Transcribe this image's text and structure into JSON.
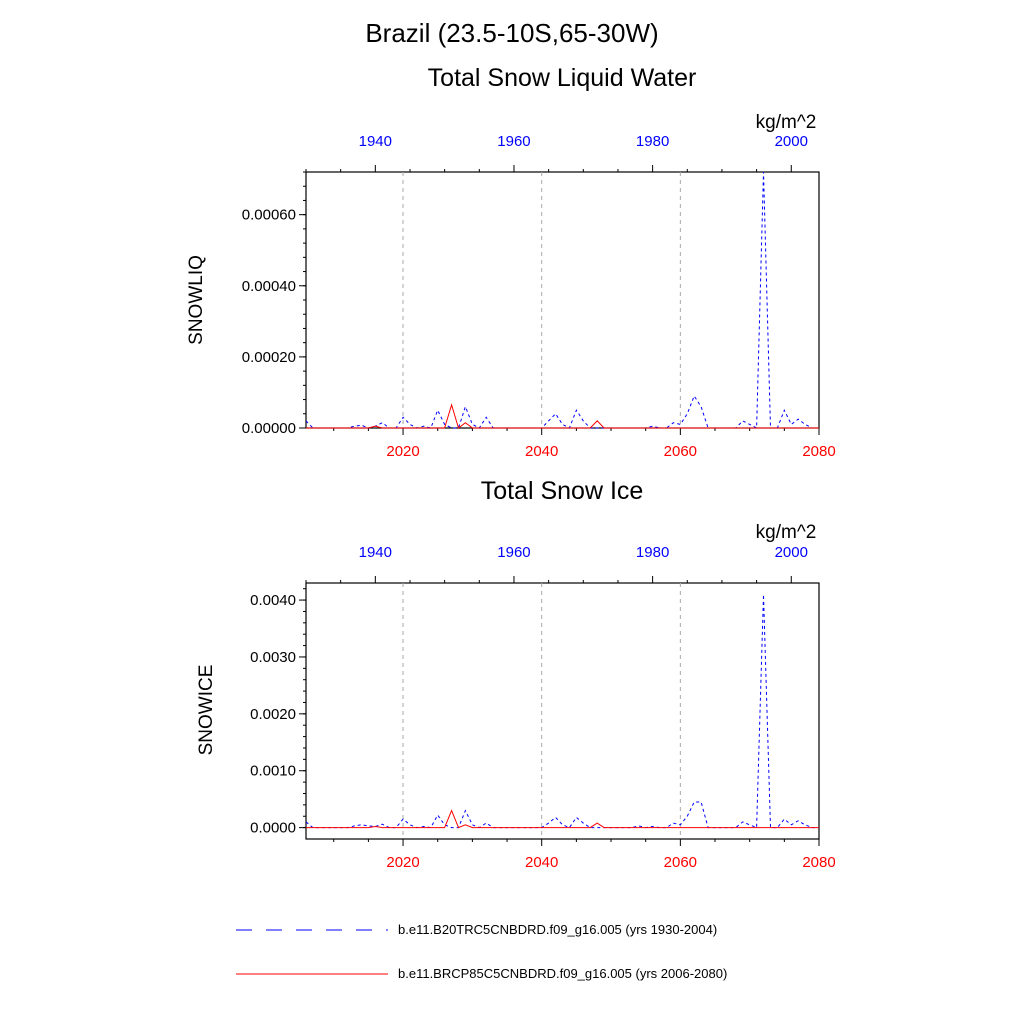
{
  "title": "Brazil (23.5-10S,65-30W)",
  "series_legend": [
    {
      "name": "b.e11.B20TRC5CNBDRD.f09_g16.005 (yrs 1930-2004)",
      "color": "#0000ff",
      "style": "dashed"
    },
    {
      "name": "b.e11.BRCP85C5CNBDRD.f09_g16.005 (yrs 2006-2080)",
      "color": "#ff0000",
      "style": "solid"
    }
  ],
  "chart_data": [
    {
      "type": "line",
      "title": "Total Snow Liquid Water",
      "units": "kg/m^2",
      "ylabel": "SNOWLIQ",
      "ylim": [
        0,
        0.00072
      ],
      "yticks": [
        0,
        0.0002,
        0.0004,
        0.0006
      ],
      "ytick_labels": [
        "0.00000",
        "0.00020",
        "0.00040",
        "0.00060"
      ],
      "bottom_axis": {
        "color": "#ff0000",
        "range": [
          2006,
          2080
        ],
        "ticks": [
          2020,
          2040,
          2060,
          2080
        ],
        "labels": [
          "2020",
          "2040",
          "2060",
          "2080"
        ]
      },
      "top_axis": {
        "color": "#0000ff",
        "range": [
          1930,
          2004
        ],
        "ticks": [
          1940,
          1960,
          1980,
          2000
        ],
        "labels": [
          "1940",
          "1960",
          "1980",
          "2000"
        ]
      },
      "grid": "vertical dashed at bottom-axis major ticks",
      "series": [
        {
          "name": "b.e11.B20TRC5CNBDRD.f09_g16.005 (yrs 1930-2004)",
          "color": "#0000ff",
          "style": "dashed",
          "x": [
            1930,
            1931,
            1932,
            1933,
            1934,
            1935,
            1936,
            1937,
            1938,
            1939,
            1940,
            1941,
            1942,
            1943,
            1944,
            1945,
            1946,
            1947,
            1948,
            1949,
            1950,
            1951,
            1952,
            1953,
            1954,
            1955,
            1956,
            1957,
            1958,
            1959,
            1960,
            1961,
            1962,
            1963,
            1964,
            1965,
            1966,
            1967,
            1968,
            1969,
            1970,
            1971,
            1972,
            1973,
            1974,
            1975,
            1976,
            1977,
            1978,
            1979,
            1980,
            1981,
            1982,
            1983,
            1984,
            1985,
            1986,
            1987,
            1988,
            1989,
            1990,
            1991,
            1992,
            1993,
            1994,
            1995,
            1996,
            1997,
            1998,
            1999,
            2000,
            2001,
            2002,
            2003,
            2004
          ],
          "y": [
            2e-05,
            0,
            0,
            0,
            0,
            0,
            0,
            5e-06,
            8e-06,
            0,
            5e-06,
            1.5e-05,
            0,
            0,
            3e-05,
            1e-05,
            0,
            5e-06,
            0,
            5e-05,
            1e-05,
            0,
            0,
            6e-05,
            1e-05,
            0,
            3e-05,
            0,
            0,
            0,
            0,
            0,
            0,
            0,
            0,
            2e-05,
            4e-05,
            1e-05,
            0,
            5e-05,
            2e-05,
            0,
            0,
            0,
            0,
            0,
            0,
            0,
            0,
            0,
            5e-06,
            0,
            0,
            1.5e-05,
            1e-05,
            4e-05,
            9e-05,
            6e-05,
            0,
            0,
            0,
            0,
            0,
            2e-05,
            1e-05,
            0,
            0.00072,
            0,
            0,
            5e-05,
            1e-05,
            2.5e-05,
            1e-05,
            0,
            0
          ]
        },
        {
          "name": "b.e11.BRCP85C5CNBDRD.f09_g16.005 (yrs 2006-2080)",
          "color": "#ff0000",
          "style": "solid",
          "x": [
            2006,
            2007,
            2008,
            2009,
            2010,
            2011,
            2012,
            2013,
            2014,
            2015,
            2016,
            2017,
            2018,
            2019,
            2020,
            2021,
            2022,
            2023,
            2024,
            2025,
            2026,
            2027,
            2028,
            2029,
            2030,
            2031,
            2032,
            2033,
            2034,
            2035,
            2036,
            2037,
            2038,
            2039,
            2040,
            2041,
            2042,
            2043,
            2044,
            2045,
            2046,
            2047,
            2048,
            2049,
            2050,
            2051,
            2052,
            2053,
            2054,
            2055,
            2056,
            2057,
            2058,
            2059,
            2060,
            2061,
            2062,
            2063,
            2064,
            2065,
            2066,
            2067,
            2068,
            2069,
            2070,
            2071,
            2072,
            2073,
            2074,
            2075,
            2076,
            2077,
            2078,
            2079,
            2080
          ],
          "y": [
            0,
            0,
            0,
            0,
            0,
            0,
            0,
            0,
            0,
            0,
            5e-06,
            0,
            0,
            0,
            0,
            0,
            0,
            0,
            0,
            0,
            0,
            6.5e-05,
            0,
            1.5e-05,
            0,
            0,
            0,
            0,
            0,
            0,
            0,
            0,
            0,
            0,
            0,
            0,
            0,
            0,
            0,
            0,
            0,
            0,
            2e-05,
            0,
            0,
            0,
            0,
            0,
            0,
            0,
            0,
            0,
            0,
            0,
            0,
            0,
            0,
            0,
            0,
            0,
            0,
            0,
            0,
            0,
            0,
            0,
            0,
            0,
            0,
            0,
            0,
            0,
            0,
            0,
            0
          ]
        }
      ]
    },
    {
      "type": "line",
      "title": "Total Snow Ice",
      "units": "kg/m^2",
      "ylabel": "SNOWICE",
      "ylim": [
        -0.0002,
        0.0043
      ],
      "yticks": [
        0,
        0.001,
        0.002,
        0.003,
        0.004
      ],
      "ytick_labels": [
        "0.0000",
        "0.0010",
        "0.0020",
        "0.0030",
        "0.0040"
      ],
      "bottom_axis": {
        "color": "#ff0000",
        "range": [
          2006,
          2080
        ],
        "ticks": [
          2020,
          2040,
          2060,
          2080
        ],
        "labels": [
          "2020",
          "2040",
          "2060",
          "2080"
        ]
      },
      "top_axis": {
        "color": "#0000ff",
        "range": [
          1930,
          2004
        ],
        "ticks": [
          1940,
          1960,
          1980,
          2000
        ],
        "labels": [
          "1940",
          "1960",
          "1980",
          "2000"
        ]
      },
      "grid": "vertical dashed at bottom-axis major ticks",
      "series": [
        {
          "name": "b.e11.B20TRC5CNBDRD.f09_g16.005 (yrs 1930-2004)",
          "color": "#0000ff",
          "style": "dashed",
          "x": [
            1930,
            1931,
            1932,
            1933,
            1934,
            1935,
            1936,
            1937,
            1938,
            1939,
            1940,
            1941,
            1942,
            1943,
            1944,
            1945,
            1946,
            1947,
            1948,
            1949,
            1950,
            1951,
            1952,
            1953,
            1954,
            1955,
            1956,
            1957,
            1958,
            1959,
            1960,
            1961,
            1962,
            1963,
            1964,
            1965,
            1966,
            1967,
            1968,
            1969,
            1970,
            1971,
            1972,
            1973,
            1974,
            1975,
            1976,
            1977,
            1978,
            1979,
            1980,
            1981,
            1982,
            1983,
            1984,
            1985,
            1986,
            1987,
            1988,
            1989,
            1990,
            1991,
            1992,
            1993,
            1994,
            1995,
            1996,
            1997,
            1998,
            1999,
            2000,
            2001,
            2002,
            2003,
            2004
          ],
          "y": [
            0.0001,
            0,
            0,
            0,
            0,
            0,
            0,
            3e-05,
            5e-05,
            3e-05,
            2e-05,
            6e-05,
            0,
            0,
            0.00015,
            5e-05,
            0,
            2e-05,
            0,
            0.00022,
            5e-05,
            0,
            0,
            0.0003,
            5e-05,
            0,
            8e-05,
            0,
            0,
            0,
            0,
            0,
            0,
            0,
            0,
            8e-05,
            0.00018,
            5e-05,
            0,
            0.00018,
            8e-05,
            0,
            0,
            0,
            0,
            0,
            0,
            0,
            3e-05,
            0,
            2e-05,
            0,
            0,
            8e-05,
            5e-05,
            0.0002,
            0.00045,
            0.00045,
            0,
            0,
            0,
            0,
            0,
            0.0001,
            5e-05,
            0,
            0.0041,
            0,
            0,
            0.00015,
            5e-05,
            0.00012,
            5e-05,
            0,
            0
          ]
        },
        {
          "name": "b.e11.BRCP85C5CNBDRD.f09_g16.005 (yrs 2006-2080)",
          "color": "#ff0000",
          "style": "solid",
          "x": [
            2006,
            2007,
            2008,
            2009,
            2010,
            2011,
            2012,
            2013,
            2014,
            2015,
            2016,
            2017,
            2018,
            2019,
            2020,
            2021,
            2022,
            2023,
            2024,
            2025,
            2026,
            2027,
            2028,
            2029,
            2030,
            2031,
            2032,
            2033,
            2034,
            2035,
            2036,
            2037,
            2038,
            2039,
            2040,
            2041,
            2042,
            2043,
            2044,
            2045,
            2046,
            2047,
            2048,
            2049,
            2050,
            2051,
            2052,
            2053,
            2054,
            2055,
            2056,
            2057,
            2058,
            2059,
            2060,
            2061,
            2062,
            2063,
            2064,
            2065,
            2066,
            2067,
            2068,
            2069,
            2070,
            2071,
            2072,
            2073,
            2074,
            2075,
            2076,
            2077,
            2078,
            2079,
            2080
          ],
          "y": [
            0,
            0,
            0,
            0,
            0,
            0,
            0,
            0,
            0,
            0,
            2e-05,
            0,
            0,
            0,
            0,
            0,
            0,
            0,
            0,
            0,
            0,
            0.0003,
            0,
            5e-05,
            0,
            0,
            0,
            0,
            0,
            0,
            0,
            0,
            0,
            0,
            0,
            0,
            0,
            0,
            0,
            0,
            0,
            0,
            8e-05,
            0,
            0,
            0,
            0,
            0,
            0,
            0,
            0,
            0,
            0,
            0,
            0,
            0,
            0,
            0,
            0,
            0,
            0,
            0,
            0,
            0,
            0,
            0,
            0,
            0,
            0,
            0,
            0,
            0,
            0,
            0,
            0
          ]
        }
      ]
    }
  ]
}
